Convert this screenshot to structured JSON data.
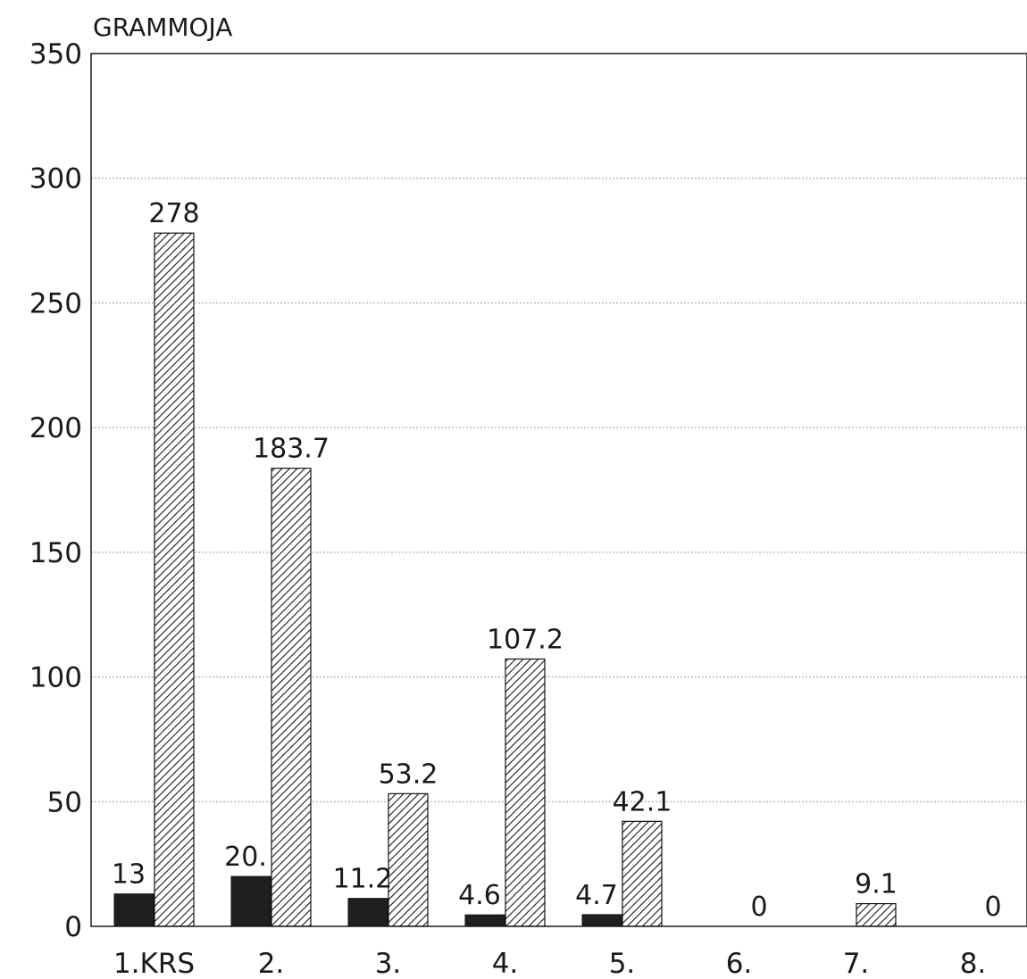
{
  "chart_data": {
    "type": "bar",
    "ylabel": "GRAMMOJA",
    "ylim": [
      0,
      350
    ],
    "yticks": [
      0,
      50,
      100,
      150,
      200,
      250,
      300,
      350
    ],
    "grid": true,
    "categories": [
      "1.KRS",
      "2.",
      "3.",
      "4.",
      "5.",
      "6.",
      "7.",
      "8."
    ],
    "series": [
      {
        "style": "solid-black",
        "values": [
          13,
          20,
          11.2,
          4.6,
          4.7,
          0,
          0,
          0
        ],
        "labels": [
          "13",
          "20.",
          "11.2",
          "4.6",
          "4.7",
          "",
          "",
          ""
        ]
      },
      {
        "style": "diagonal-hatch",
        "values": [
          278,
          183.7,
          53.2,
          107.2,
          42.1,
          0,
          9.1,
          0
        ],
        "labels": [
          "278",
          "183.7",
          "53.2",
          "107.2",
          "42.1",
          "0",
          "9.1",
          "0"
        ]
      }
    ]
  }
}
